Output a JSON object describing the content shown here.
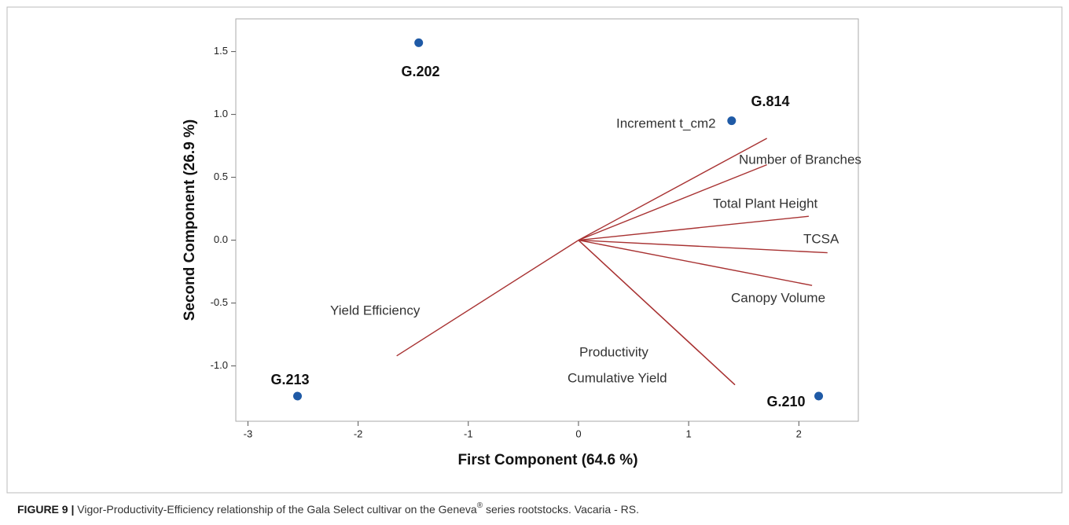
{
  "chart_data": {
    "type": "biplot",
    "xlabel": "First Component (64.6 %)",
    "ylabel": "Second Component (26.9 %)",
    "xlim": [
      -3.11,
      2.54
    ],
    "ylim": [
      -1.44,
      1.76
    ],
    "xticks": [
      -3,
      -2,
      -1,
      0,
      1,
      2
    ],
    "yticks": [
      {
        "value": -1.0,
        "label": "-1.0"
      },
      -0.5,
      {
        "value": 0.0,
        "label": "0.0"
      },
      0.5,
      {
        "value": 1.0,
        "label": "1.0"
      },
      1.5
    ],
    "points": {
      "color": "#1f5aa6",
      "names": [
        "G.202",
        "G.814",
        "G.213",
        "G.210"
      ],
      "x": [
        -1.45,
        1.39,
        -2.55,
        2.18
      ],
      "y": [
        1.57,
        0.95,
        -1.24,
        -1.24
      ]
    },
    "loadings": {
      "color": "#a83232",
      "names": [
        "Increment t_cm2",
        "Number of Branches",
        "Total Plant Height",
        "TCSA",
        "Canopy Volume",
        "Yield Efficiency",
        "Productivity",
        "Cumulative Yield"
      ],
      "x": [
        1.71,
        1.71,
        2.09,
        2.26,
        2.12,
        -1.65,
        1.42,
        1.42
      ],
      "y": [
        0.81,
        0.6,
        0.19,
        -0.1,
        -0.36,
        -0.92,
        -1.15,
        -1.15
      ]
    },
    "caption_label": "FIGURE 9 |",
    "caption_parts": [
      "Vigor-Productivity-Efficiency relationship of the Gala Select cultivar on the Geneva",
      "®",
      " series rootstocks. Vacaria - RS."
    ]
  }
}
